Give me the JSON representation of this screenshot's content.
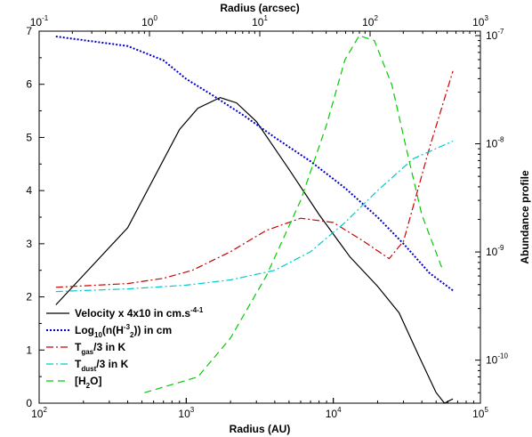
{
  "chart_data": {
    "type": "line",
    "x_bottom": {
      "label": "Radius (AU)",
      "scale": "log",
      "range": [
        100,
        100000
      ],
      "ticks": [
        {
          "base": "10",
          "exp": "2",
          "value": 100
        },
        {
          "base": "10",
          "exp": "3",
          "value": 1000
        },
        {
          "base": "10",
          "exp": "4",
          "value": 10000
        },
        {
          "base": "10",
          "exp": "5",
          "value": 100000
        }
      ]
    },
    "x_top": {
      "label": "Radius (arcsec)",
      "scale": "log",
      "range": [
        0.1,
        1000
      ],
      "ticks": [
        {
          "base": "10",
          "exp": "-1",
          "value": 0.1
        },
        {
          "base": "10",
          "exp": "0",
          "value": 1
        },
        {
          "base": "10",
          "exp": "1",
          "value": 10
        },
        {
          "base": "10",
          "exp": "2",
          "value": 100
        },
        {
          "base": "10",
          "exp": "3",
          "value": 1000
        }
      ]
    },
    "y_left": {
      "label": "",
      "scale": "linear",
      "range": [
        0,
        7
      ],
      "ticks": [
        "0",
        "1",
        "2",
        "3",
        "4",
        "5",
        "6",
        "7"
      ]
    },
    "y_right": {
      "label": "Abundance profile",
      "scale": "log",
      "range": [
        4e-11,
        1.1e-07
      ],
      "ticks": [
        {
          "base": "10",
          "exp": "-10",
          "value": 1e-10
        },
        {
          "base": "10",
          "exp": "-9",
          "value": 1e-09
        },
        {
          "base": "10",
          "exp": "-8",
          "value": 1e-08
        },
        {
          "base": "10",
          "exp": "-7",
          "value": 1e-07
        }
      ]
    },
    "grid": false,
    "legend_position": "bottom-left",
    "series": [
      {
        "key": "velocity",
        "axis": "left",
        "color": "#000000",
        "dash": "solid",
        "legend": {
          "main": "Velocity x 4x10",
          "sup": "-4",
          "rest": " in cm.s",
          "sup2": "-1"
        },
        "points": [
          [
            130,
            1.85
          ],
          [
            400,
            3.3
          ],
          [
            900,
            5.15
          ],
          [
            1200,
            5.55
          ],
          [
            1700,
            5.75
          ],
          [
            2200,
            5.65
          ],
          [
            3000,
            5.3
          ],
          [
            5000,
            4.4
          ],
          [
            8000,
            3.55
          ],
          [
            13000,
            2.75
          ],
          [
            20000,
            2.2
          ],
          [
            28000,
            1.7
          ],
          [
            38000,
            0.9
          ],
          [
            50000,
            0.2
          ],
          [
            57000,
            0.0
          ],
          [
            65000,
            0.08
          ]
        ]
      },
      {
        "key": "density",
        "axis": "left",
        "color": "#0000cc",
        "dash": "dotted",
        "legend": {
          "main": "Log",
          "sub": "10",
          "rest": "(n(H",
          "sub2": "2",
          "rest2": ")) in cm",
          "sup": "-3"
        },
        "points": [
          [
            130,
            6.9
          ],
          [
            400,
            6.72
          ],
          [
            700,
            6.45
          ],
          [
            1000,
            6.1
          ],
          [
            1500,
            5.8
          ],
          [
            2500,
            5.4
          ],
          [
            4000,
            5.0
          ],
          [
            7000,
            4.55
          ],
          [
            12000,
            4.05
          ],
          [
            20000,
            3.5
          ],
          [
            30000,
            3.0
          ],
          [
            45000,
            2.45
          ],
          [
            65000,
            2.12
          ]
        ]
      },
      {
        "key": "tgas",
        "axis": "left",
        "color": "#cc0000",
        "dash": "dashdot",
        "legend": {
          "main": "T",
          "sub": "gas",
          "rest": "/3 in K"
        },
        "points": [
          [
            130,
            2.18
          ],
          [
            400,
            2.25
          ],
          [
            700,
            2.35
          ],
          [
            1100,
            2.5
          ],
          [
            2000,
            2.85
          ],
          [
            3500,
            3.25
          ],
          [
            6000,
            3.48
          ],
          [
            10000,
            3.4
          ],
          [
            16000,
            3.05
          ],
          [
            24000,
            2.72
          ],
          [
            30000,
            3.05
          ],
          [
            45000,
            4.8
          ],
          [
            65000,
            6.25
          ]
        ]
      },
      {
        "key": "tdust",
        "axis": "left",
        "color": "#00cccc",
        "dash": "dashdot",
        "legend": {
          "main": "T",
          "sub": "dust",
          "rest": "/3 in K"
        },
        "points": [
          [
            130,
            2.1
          ],
          [
            400,
            2.15
          ],
          [
            1000,
            2.22
          ],
          [
            2000,
            2.32
          ],
          [
            4000,
            2.5
          ],
          [
            7000,
            2.85
          ],
          [
            12000,
            3.4
          ],
          [
            20000,
            4.0
          ],
          [
            35000,
            4.6
          ],
          [
            65000,
            4.93
          ]
        ]
      },
      {
        "key": "h2o",
        "axis": "right",
        "color": "#00cc00",
        "dash": "dashed",
        "legend": {
          "main": "[H",
          "sub": "2",
          "rest": "O]"
        },
        "points": [
          [
            520,
            5e-11
          ],
          [
            1200,
            7e-11
          ],
          [
            2000,
            1.6e-10
          ],
          [
            3500,
            6e-10
          ],
          [
            6000,
            3e-09
          ],
          [
            9000,
            1.5e-08
          ],
          [
            12000,
            6e-08
          ],
          [
            15000,
            1e-07
          ],
          [
            19000,
            9e-08
          ],
          [
            25000,
            3.5e-08
          ],
          [
            32000,
            8e-09
          ],
          [
            40000,
            2.2e-09
          ],
          [
            55000,
            7e-10
          ]
        ]
      }
    ]
  }
}
